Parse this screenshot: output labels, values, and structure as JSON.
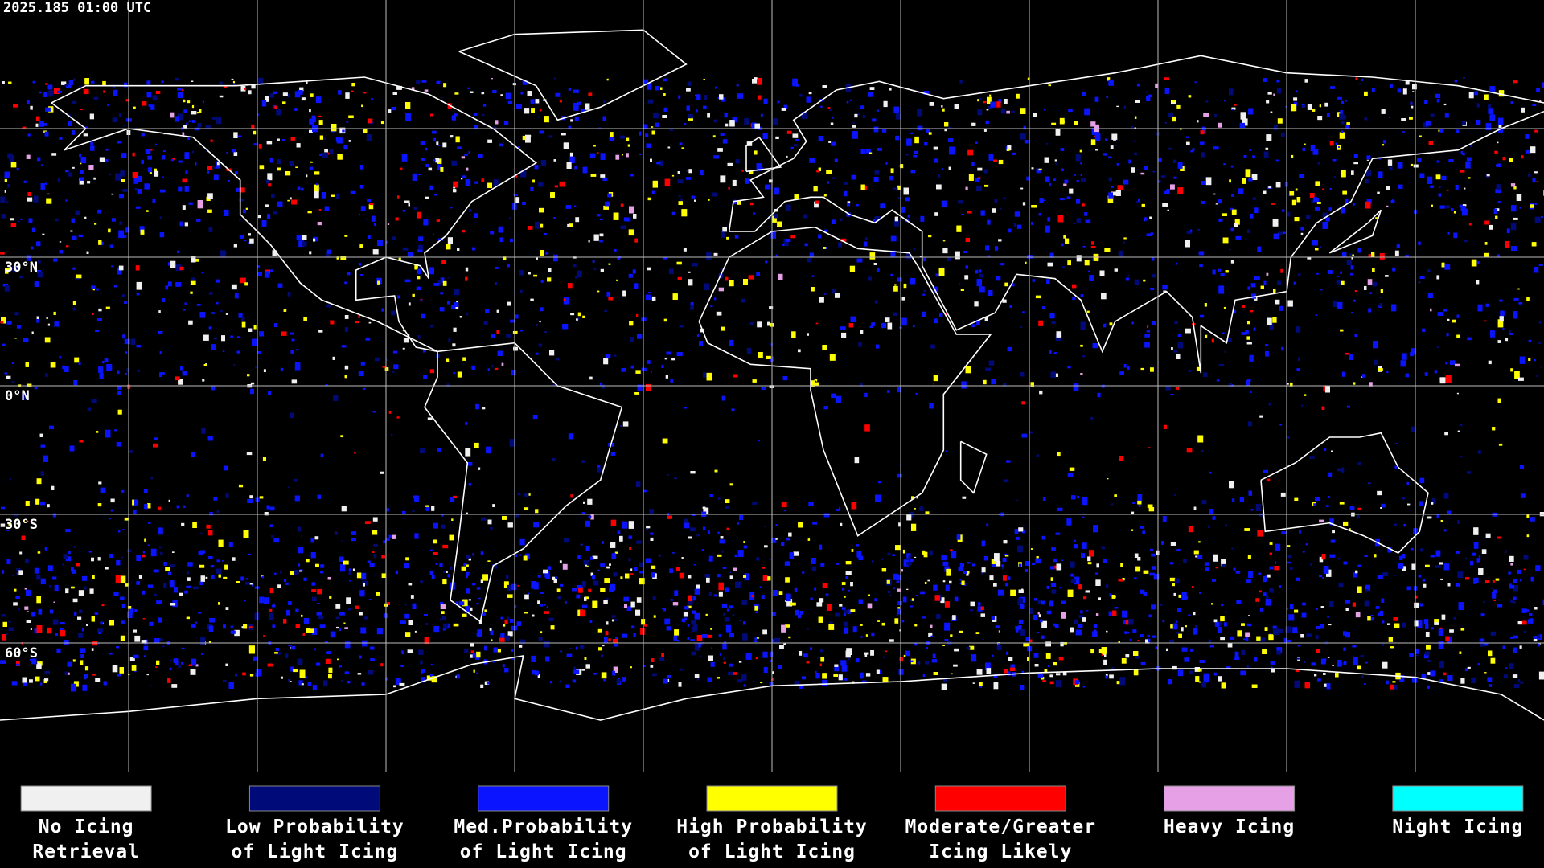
{
  "header": {
    "timestamp": "2025.185 01:00 UTC"
  },
  "map": {
    "latitude_labels": [
      "30°N",
      "0°N",
      "30°S",
      "60°S"
    ]
  },
  "legend": {
    "items": [
      {
        "lines": [
          "No Icing",
          "Retrieval"
        ],
        "color": "#f0f0f0"
      },
      {
        "lines": [
          "Low Probability",
          "of Light Icing"
        ],
        "color": "#000a78"
      },
      {
        "lines": [
          "Med.Probability",
          "of Light Icing"
        ],
        "color": "#0a14ff"
      },
      {
        "lines": [
          "High Probability",
          "of Light Icing"
        ],
        "color": "#ffff00"
      },
      {
        "lines": [
          "Moderate/Greater",
          "Icing Likely"
        ],
        "color": "#ff0000"
      },
      {
        "lines": [
          "Heavy Icing"
        ],
        "color": "#e6a0e6"
      },
      {
        "lines": [
          "Night Icing"
        ],
        "color": "#00ffff"
      }
    ]
  }
}
